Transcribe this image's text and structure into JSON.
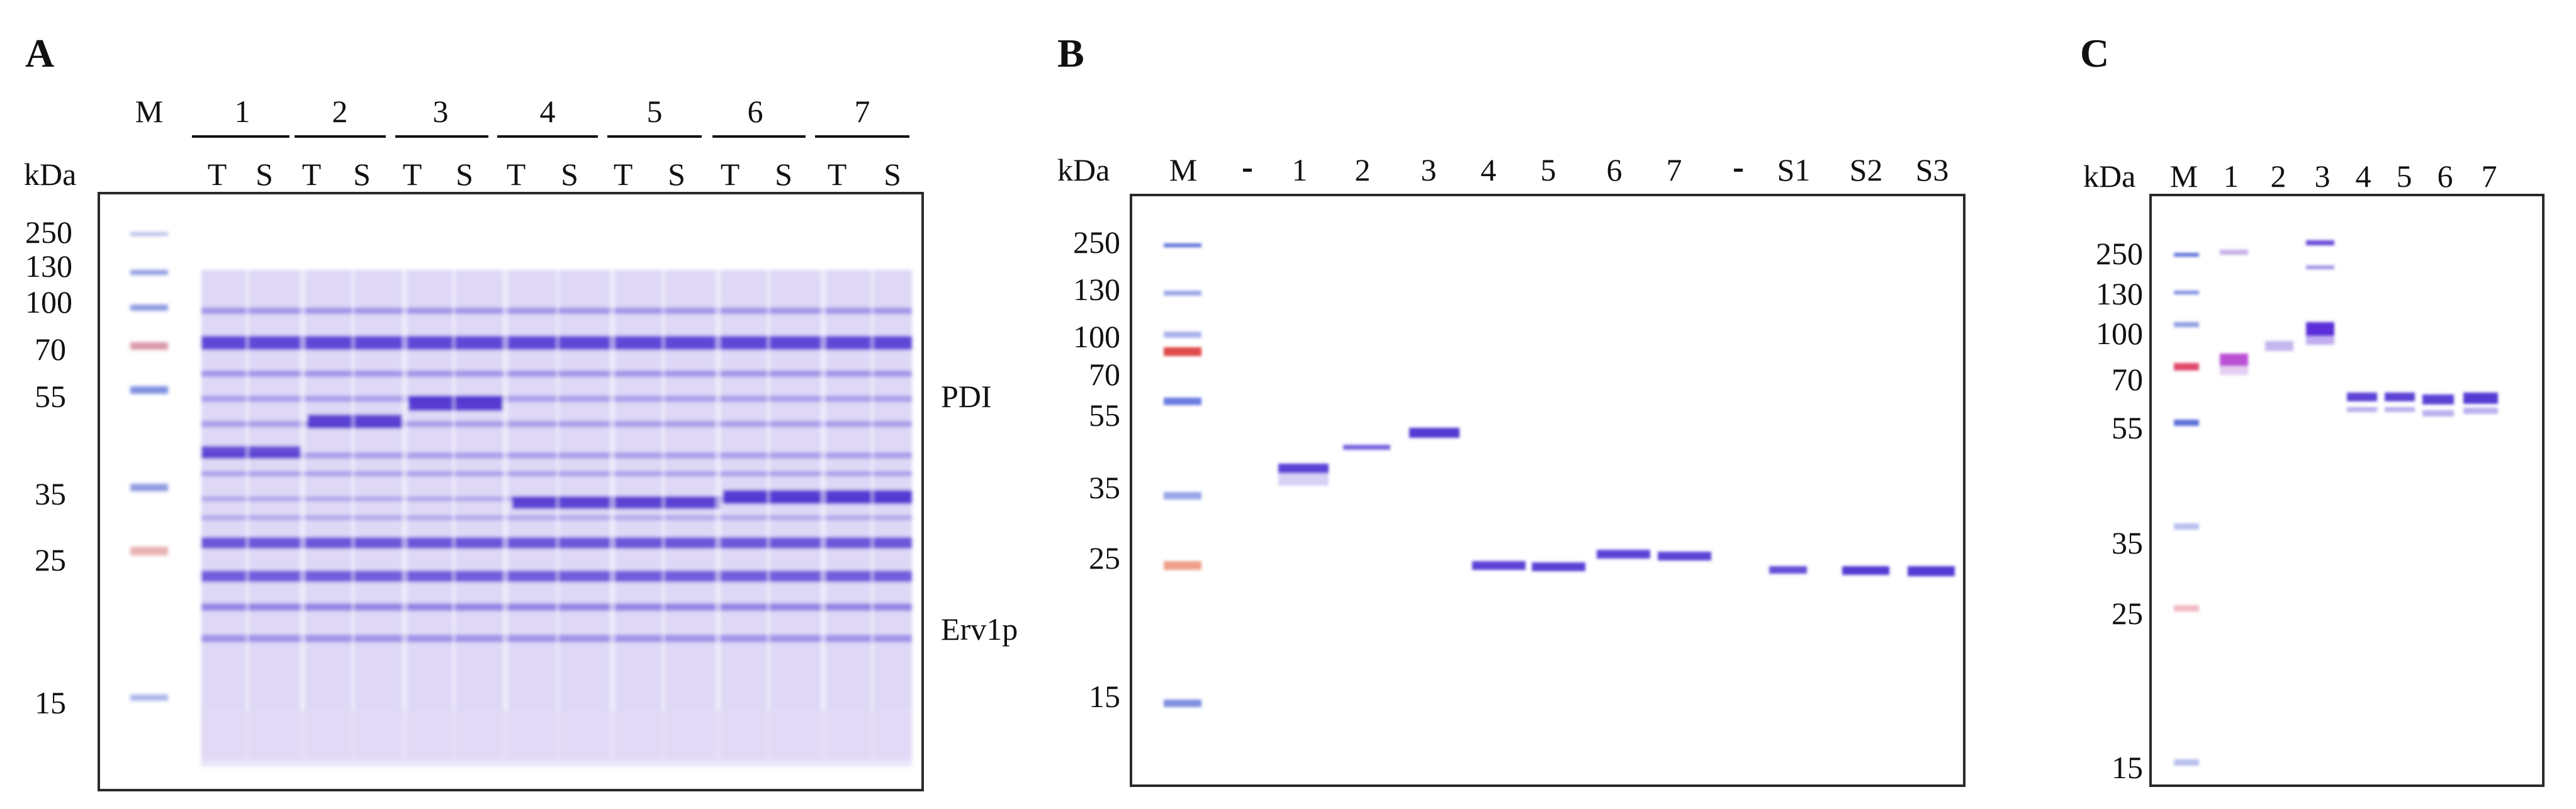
{
  "panelA": {
    "letter": "A",
    "marker_label": "M",
    "kda_label": "kDa",
    "groups": [
      "1",
      "2",
      "3",
      "4",
      "5",
      "6",
      "7"
    ],
    "subs": [
      "T",
      "S"
    ],
    "ladder": [
      "250",
      "130",
      "100",
      "70",
      "55",
      "35",
      "25",
      "15"
    ],
    "annot_pdi": "PDI",
    "annot_erv": "Erv1p"
  },
  "panelB": {
    "letter": "B",
    "kda_label": "kDa",
    "lanes": [
      "M",
      "-",
      "1",
      "2",
      "3",
      "4",
      "5",
      "6",
      "7",
      "-",
      "S1",
      "S2",
      "S3"
    ],
    "ladder": [
      "250",
      "130",
      "100",
      "70",
      "55",
      "35",
      "25",
      "15"
    ]
  },
  "panelC": {
    "letter": "C",
    "kda_label": "kDa",
    "lanes": [
      "M",
      "1",
      "2",
      "3",
      "4",
      "5",
      "6",
      "7"
    ],
    "ladder": [
      "250",
      "130",
      "100",
      "70",
      "55",
      "35",
      "25",
      "15"
    ]
  },
  "colors": {
    "band": "#4b2fd0",
    "smear": "#9d8ee6",
    "marker_blue": "#5a6fd8",
    "marker_red": "#e04a4a"
  }
}
